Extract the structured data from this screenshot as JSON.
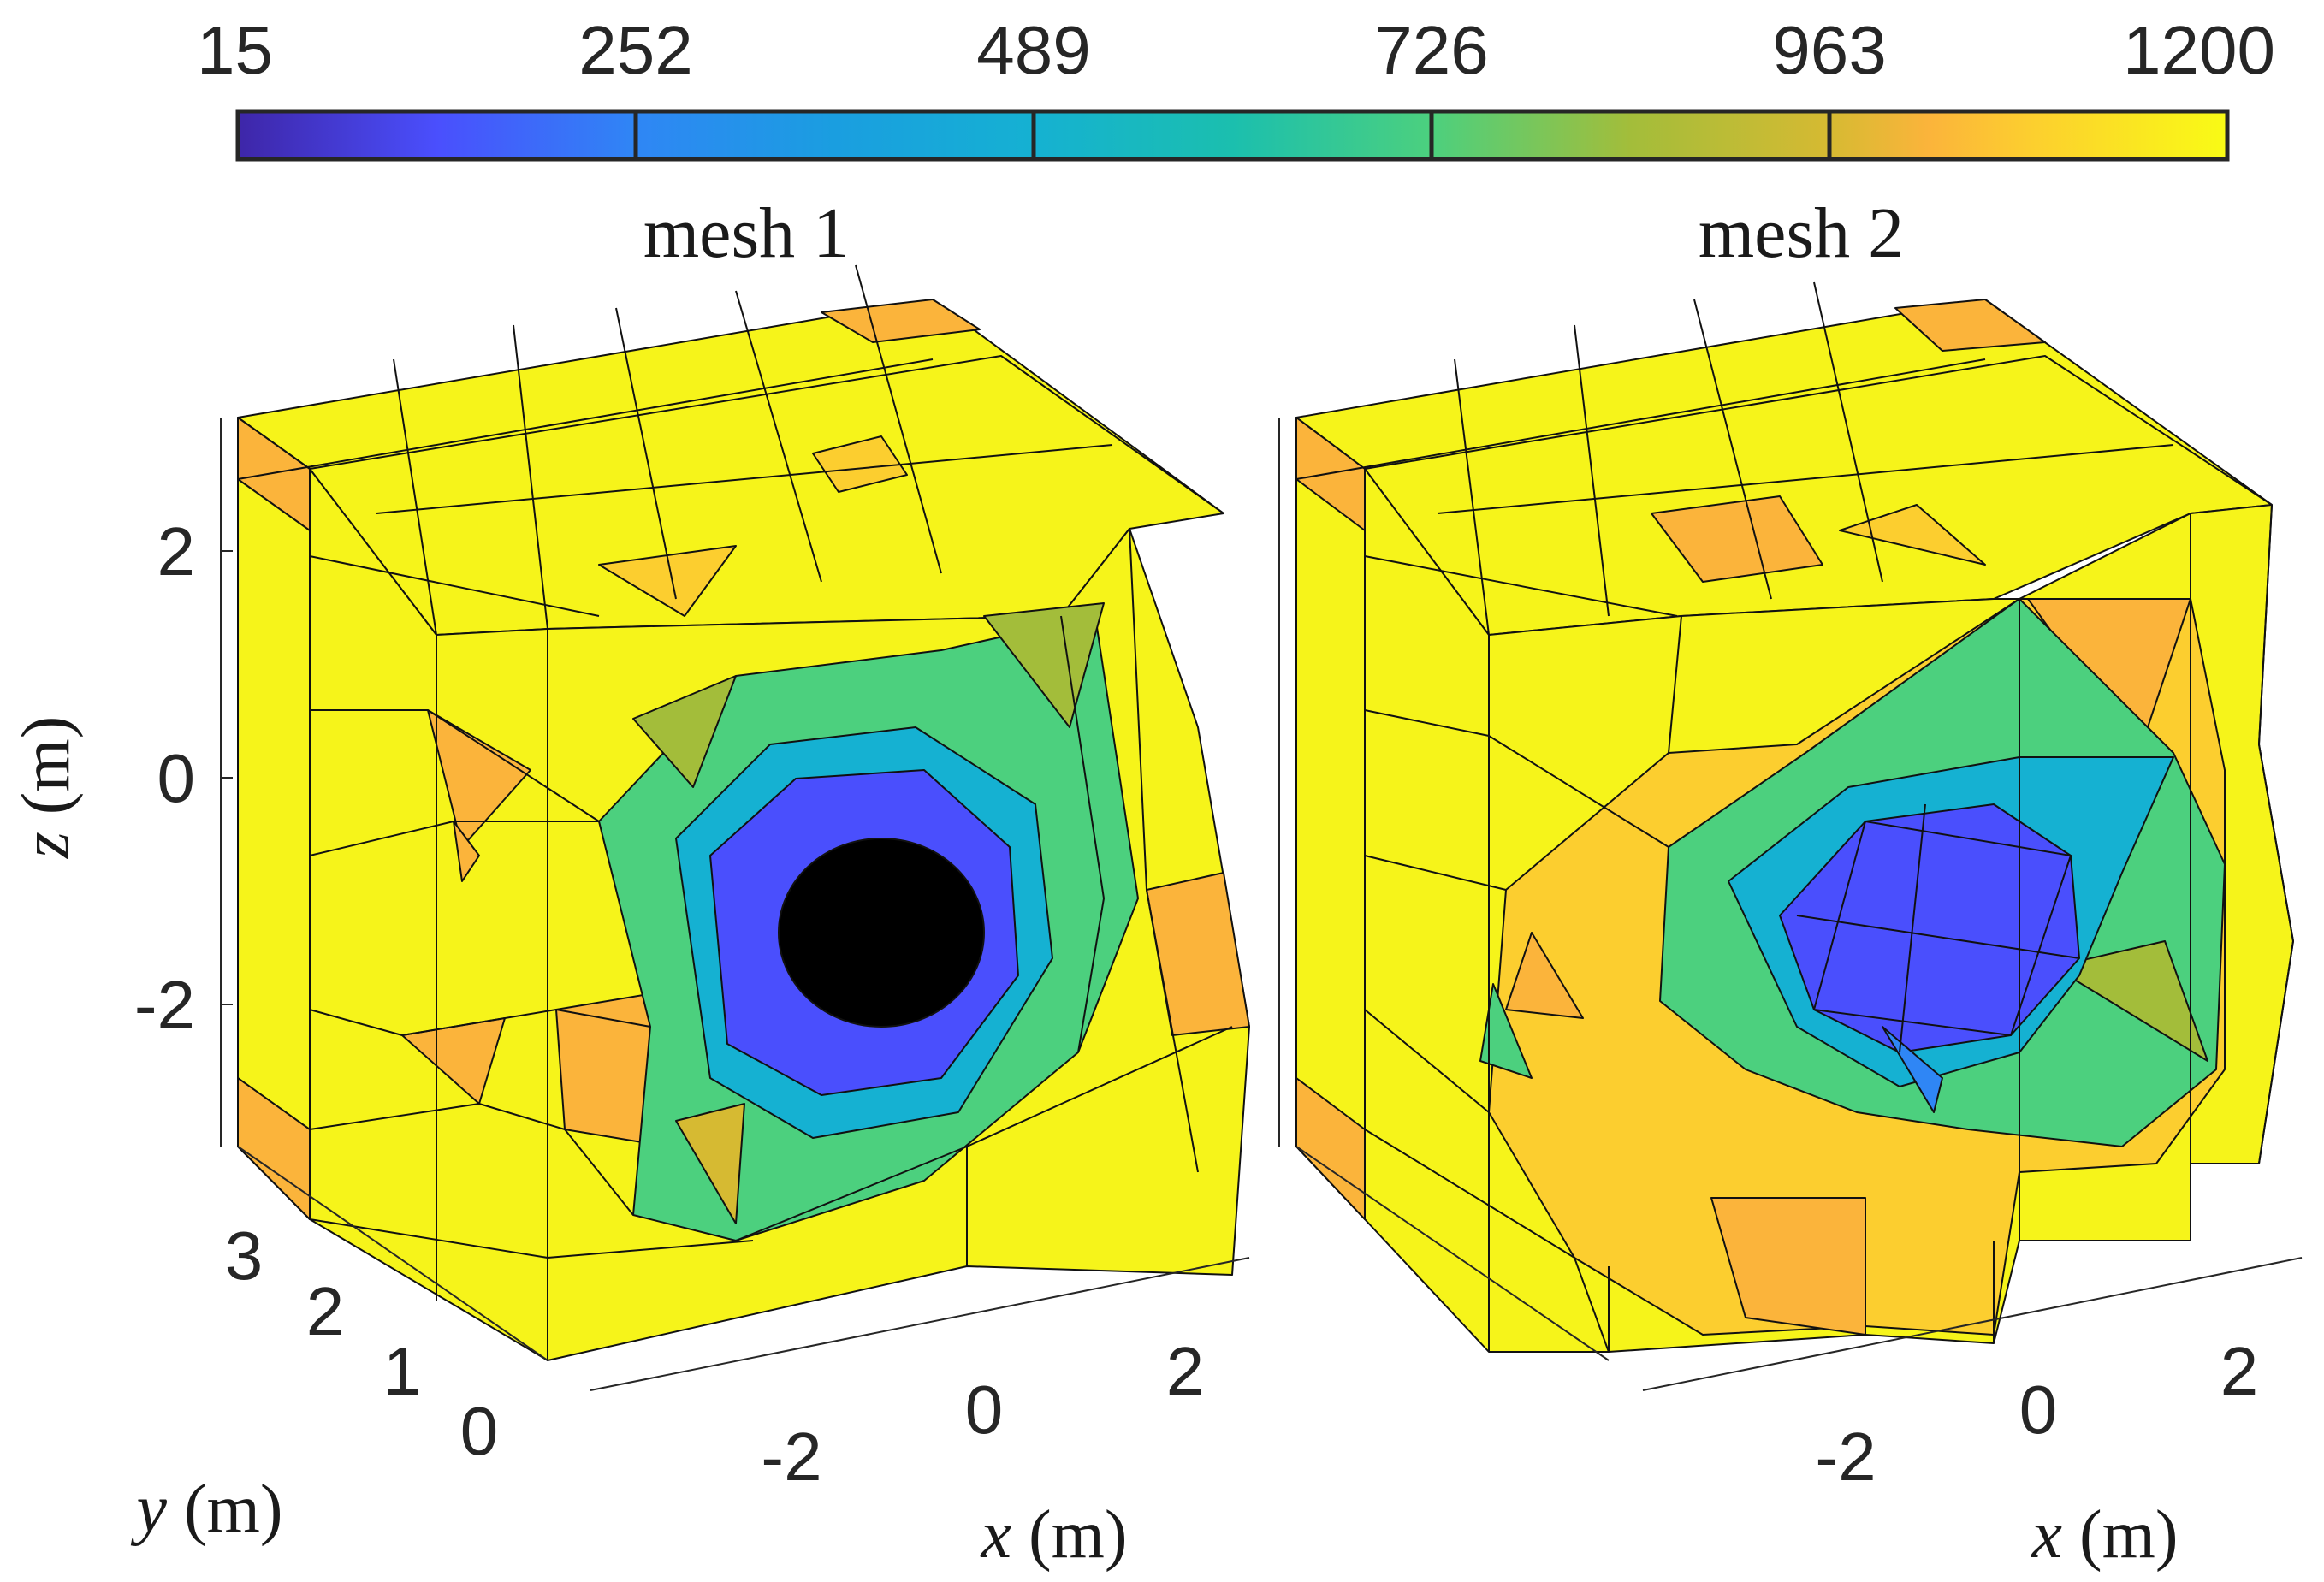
{
  "chart_data": {
    "type": "3d-mesh-surface",
    "colorbar": {
      "min": 15,
      "max": 1200,
      "ticks": [
        15,
        252,
        489,
        726,
        963,
        1200
      ],
      "tick_labels": [
        "15",
        "252",
        "489",
        "726",
        "963",
        "1200"
      ],
      "colormap": [
        "#3e26a8",
        "#4a4ffd",
        "#2f86f5",
        "#15b1d2",
        "#1bbfae",
        "#4cd07e",
        "#a3bd3a",
        "#d6ba32",
        "#fbb43b",
        "#fcce2f",
        "#f9fb15"
      ]
    },
    "panels": [
      {
        "title": "mesh 1",
        "xlabel_var": "x",
        "ylabel_var": "y",
        "zlabel_var": "z",
        "unit": "(m)",
        "xticks": [
          "-2",
          "0",
          "2"
        ],
        "yticks": [
          "0",
          "1",
          "2",
          "3"
        ],
        "zticks": [
          "2",
          "0",
          "-2"
        ],
        "hole": "dense refinement around cavity (appears black)"
      },
      {
        "title": "mesh 2",
        "xlabel_var": "x",
        "unit": "(m)",
        "xticks": [
          "-2",
          "0",
          "2"
        ],
        "hole": "coarse refinement around cavity"
      }
    ]
  }
}
